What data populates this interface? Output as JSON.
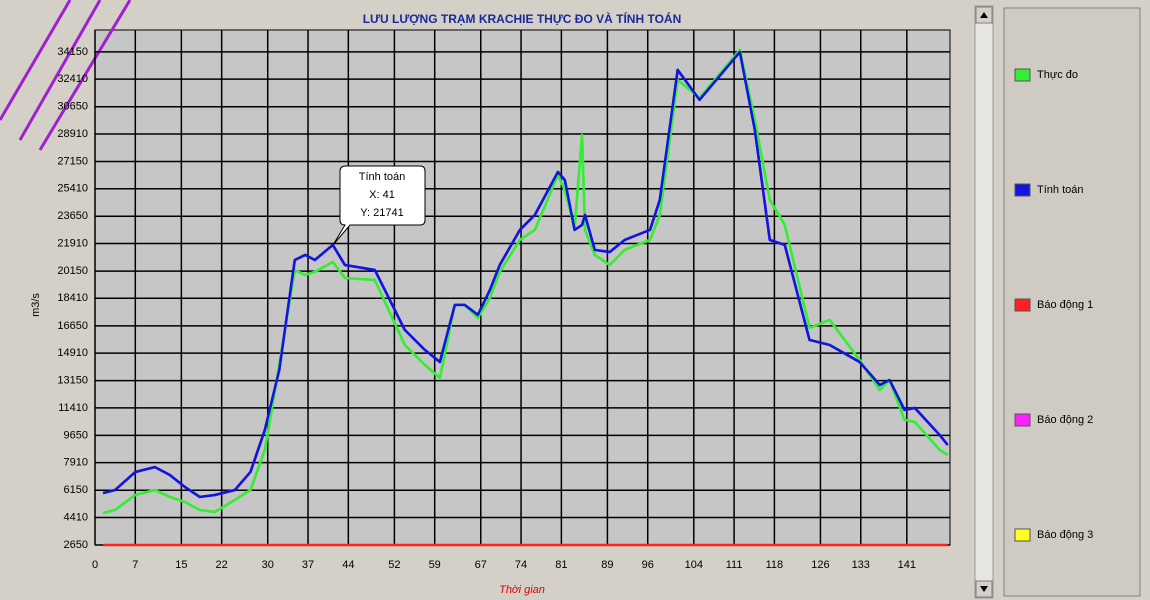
{
  "chart_data": {
    "type": "line",
    "title": "LƯU LƯỢNG TRẠM KRACHIE THỰC ĐO VÀ TÍNH TOÁN",
    "x_label": "Thời gian",
    "y_label": "m3/s",
    "x": [
      1.4,
      3.5,
      7,
      10.4,
      13,
      15.6,
      18.2,
      20.8,
      24.3,
      27,
      29.5,
      32,
      34.7,
      36.5,
      38.2,
      41.3,
      43.4,
      48.6,
      53.8,
      57.3,
      59.9,
      62.5,
      64.2,
      66.5,
      68.6,
      70.3,
      73.8,
      76.4,
      80.4,
      81.6,
      83.3,
      84.6,
      85.1,
      86.8,
      89.4,
      92,
      96.4,
      98.1,
      101.2,
      105,
      112,
      114.6,
      117.2,
      119.8,
      124.1,
      127.6,
      132.8,
      136.3,
      138,
      140.6,
      142.4,
      146.7,
      148.1
    ],
    "series": [
      {
        "name": "Thực đo",
        "color": "#33ee33",
        "values": [
          4695,
          4890,
          5850,
          6165,
          5720,
          5400,
          4890,
          4760,
          5530,
          6165,
          8720,
          14150,
          20220,
          19900,
          20100,
          20730,
          19710,
          19580,
          15430,
          14150,
          13320,
          17990,
          17990,
          17160,
          18430,
          20100,
          22140,
          22780,
          26290,
          25330,
          22910,
          28850,
          22780,
          21180,
          20540,
          21500,
          22140,
          23740,
          32360,
          31210,
          34280,
          29810,
          24700,
          23100,
          16520,
          17030,
          14470,
          12550,
          13190,
          10640,
          10510,
          8720,
          8400
        ]
      },
      {
        "name": "Tính toán",
        "color": "#1414e0",
        "values": [
          5970,
          6165,
          7315,
          7630,
          7120,
          6360,
          5720,
          5845,
          6165,
          7315,
          10000,
          13830,
          20860,
          21180,
          20860,
          21820,
          20540,
          20220,
          16390,
          15110,
          14340,
          17990,
          17990,
          17350,
          18950,
          20540,
          22780,
          23740,
          26480,
          25970,
          22780,
          23100,
          23740,
          21500,
          21370,
          22140,
          22780,
          24700,
          33000,
          31090,
          34150,
          29170,
          22140,
          21820,
          15750,
          15430,
          14340,
          12870,
          13190,
          11280,
          11400,
          9680,
          9040
        ]
      },
      {
        "name": "Báo động 1",
        "color": "#ff2020",
        "values": [
          2650,
          2650,
          2650,
          2650,
          2650,
          2650,
          2650,
          2650,
          2650,
          2650,
          2650,
          2650,
          2650,
          2650,
          2650,
          2650,
          2650,
          2650,
          2650,
          2650,
          2650,
          2650,
          2650,
          2650,
          2650,
          2650,
          2650,
          2650,
          2650,
          2650,
          2650,
          2650,
          2650,
          2650,
          2650,
          2650,
          2650,
          2650,
          2650,
          2650,
          2650,
          2650,
          2650,
          2650,
          2650,
          2650,
          2650,
          2650,
          2650,
          2650,
          2650,
          2650,
          2650
        ]
      },
      {
        "name": "Báo động 2",
        "color": "#ff20ff",
        "values": [
          null,
          null,
          null,
          null,
          null,
          null,
          null,
          null,
          null,
          null,
          null,
          null,
          null,
          null,
          null,
          null,
          null,
          null,
          null,
          null,
          null,
          null,
          null,
          null,
          null,
          null,
          null,
          null,
          null,
          null,
          null,
          null,
          null,
          null,
          null,
          null,
          null,
          null,
          null,
          null,
          null,
          null,
          null,
          null,
          null,
          null,
          null,
          null,
          null,
          null,
          null,
          null,
          null
        ]
      },
      {
        "name": "Báo động 3",
        "color": "#ffff20",
        "values": [
          null,
          null,
          null,
          null,
          null,
          null,
          null,
          null,
          null,
          null,
          null,
          null,
          null,
          null,
          null,
          null,
          null,
          null,
          null,
          null,
          null,
          null,
          null,
          null,
          null,
          null,
          null,
          null,
          null,
          null,
          null,
          null,
          null,
          null,
          null,
          null,
          null,
          null,
          null,
          null,
          null,
          null,
          null,
          null,
          null,
          null,
          null,
          null,
          null,
          null,
          null,
          null,
          null
        ]
      }
    ],
    "xlim": [
      0,
      148.5
    ],
    "xticks": [
      0,
      7,
      15,
      22,
      30,
      37,
      44,
      52,
      59,
      67,
      74,
      81,
      89,
      96,
      104,
      111,
      118,
      126,
      133,
      141
    ],
    "ylim": [
      2650,
      35550
    ],
    "yticks": [
      2650,
      4410,
      6150,
      7910,
      9650,
      11410,
      13150,
      14910,
      16650,
      18410,
      20150,
      21910,
      23650,
      25410,
      27150,
      28910,
      30650,
      32410,
      34150
    ],
    "grid": true,
    "legend": "right",
    "tooltip": [
      "Tính toán",
      "X: 41",
      "Y: 21741"
    ]
  }
}
